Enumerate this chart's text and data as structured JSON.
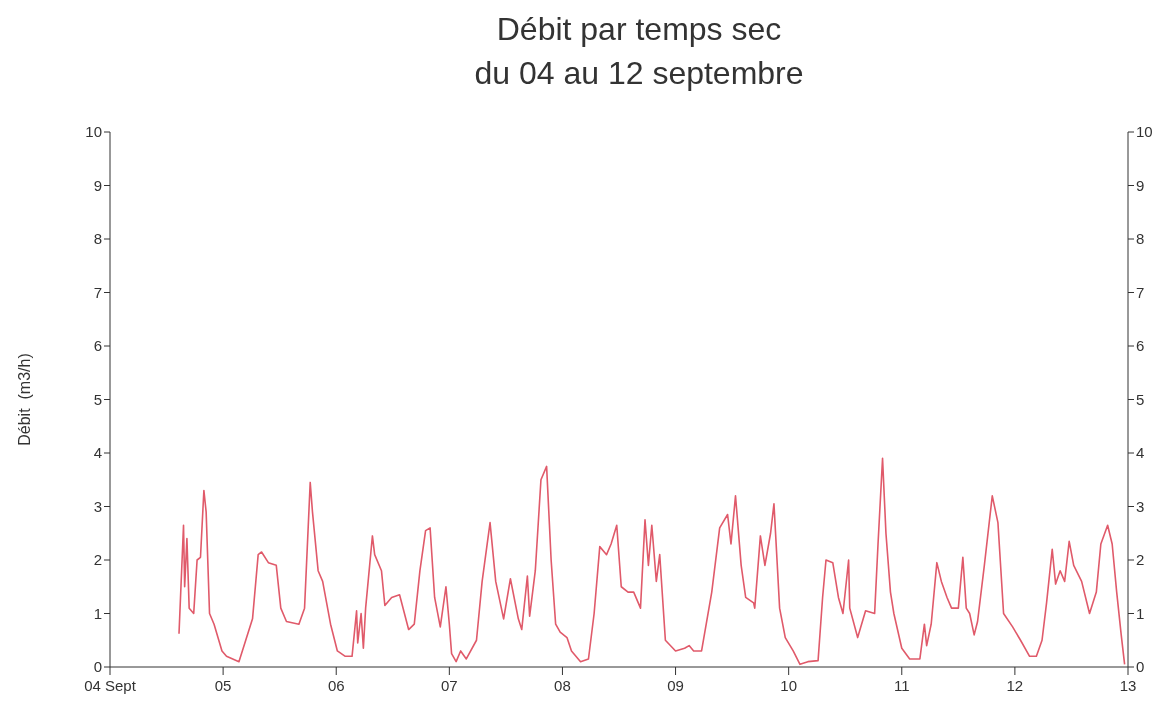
{
  "chart_data": {
    "type": "line",
    "title": "Débit par temps sec\ndu 04 au 12 septembre",
    "ylabel": "Débit  (m3/h)",
    "xlim": [
      4,
      13
    ],
    "xticks": [
      {
        "value": 4,
        "label": "04 Sept"
      },
      {
        "value": 5,
        "label": "05"
      },
      {
        "value": 6,
        "label": "06"
      },
      {
        "value": 7,
        "label": "07"
      },
      {
        "value": 8,
        "label": "08"
      },
      {
        "value": 9,
        "label": "09"
      },
      {
        "value": 10,
        "label": "10"
      },
      {
        "value": 11,
        "label": "11"
      },
      {
        "value": 12,
        "label": "12"
      },
      {
        "value": 13,
        "label": "13"
      }
    ],
    "ylim": [
      0,
      10
    ],
    "yticks": [
      0,
      1,
      2,
      3,
      4,
      5,
      6,
      7,
      8,
      9,
      10
    ],
    "y2lim": [
      0,
      10
    ],
    "y2ticks": [
      0,
      1,
      2,
      3,
      4,
      5,
      6,
      7,
      8,
      9,
      10
    ],
    "grid": false,
    "marker": "none",
    "line_style": "solid",
    "series": [
      {
        "color": "#e05a6a",
        "x": [
          4.61,
          4.65,
          4.66,
          4.68,
          4.7,
          4.74,
          4.77,
          4.8,
          4.83,
          4.85,
          4.88,
          4.92,
          4.99,
          5.03,
          5.14,
          5.2,
          5.26,
          5.31,
          5.34,
          5.4,
          5.47,
          5.51,
          5.56,
          5.67,
          5.72,
          5.77,
          5.79,
          5.84,
          5.88,
          5.95,
          6.01,
          6.08,
          6.14,
          6.18,
          6.19,
          6.22,
          6.24,
          6.26,
          6.32,
          6.34,
          6.4,
          6.43,
          6.49,
          6.56,
          6.64,
          6.69,
          6.74,
          6.79,
          6.83,
          6.87,
          6.92,
          6.97,
          7.0,
          7.02,
          7.06,
          7.1,
          7.15,
          7.24,
          7.29,
          7.36,
          7.41,
          7.48,
          7.54,
          7.61,
          7.64,
          7.69,
          7.71,
          7.76,
          7.81,
          7.86,
          7.9,
          7.94,
          7.98,
          8.04,
          8.08,
          8.16,
          8.23,
          8.28,
          8.33,
          8.39,
          8.43,
          8.48,
          8.52,
          8.58,
          8.63,
          8.69,
          8.73,
          8.76,
          8.79,
          8.83,
          8.86,
          8.91,
          9.0,
          9.08,
          9.12,
          9.16,
          9.23,
          9.32,
          9.39,
          9.46,
          9.49,
          9.53,
          9.58,
          9.62,
          9.69,
          9.7,
          9.75,
          9.79,
          9.84,
          9.87,
          9.92,
          9.97,
          10.04,
          10.1,
          10.17,
          10.26,
          10.3,
          10.33,
          10.39,
          10.44,
          10.48,
          10.53,
          10.54,
          10.61,
          10.68,
          10.76,
          10.79,
          10.83,
          10.86,
          10.9,
          10.93,
          11.0,
          11.07,
          11.16,
          11.2,
          11.22,
          11.26,
          11.31,
          11.35,
          11.4,
          11.44,
          11.5,
          11.54,
          11.57,
          11.6,
          11.64,
          11.67,
          11.73,
          11.8,
          11.85,
          11.9,
          11.98,
          12.05,
          12.13,
          12.19,
          12.24,
          12.28,
          12.33,
          12.36,
          12.4,
          12.44,
          12.48,
          12.52,
          12.59,
          12.66,
          12.72,
          12.76,
          12.82,
          12.86,
          12.9,
          12.94,
          12.97
        ],
        "values": [
          0.62,
          2.65,
          1.5,
          2.4,
          1.1,
          1.0,
          2.0,
          2.05,
          3.3,
          2.9,
          1.0,
          0.8,
          0.3,
          0.2,
          0.1,
          0.5,
          0.9,
          2.1,
          2.15,
          1.95,
          1.9,
          1.1,
          0.85,
          0.8,
          1.1,
          3.45,
          2.9,
          1.8,
          1.6,
          0.8,
          0.3,
          0.2,
          0.2,
          1.05,
          0.45,
          1.0,
          0.35,
          1.1,
          2.45,
          2.1,
          1.8,
          1.15,
          1.3,
          1.35,
          0.7,
          0.8,
          1.8,
          2.55,
          2.6,
          1.3,
          0.75,
          1.5,
          0.8,
          0.25,
          0.1,
          0.3,
          0.15,
          0.5,
          1.6,
          2.7,
          1.6,
          0.9,
          1.65,
          0.9,
          0.7,
          1.7,
          0.95,
          1.8,
          3.5,
          3.75,
          2.0,
          0.8,
          0.65,
          0.55,
          0.3,
          0.1,
          0.15,
          1.0,
          2.25,
          2.1,
          2.3,
          2.65,
          1.5,
          1.4,
          1.4,
          1.1,
          2.75,
          1.9,
          2.65,
          1.6,
          2.1,
          0.5,
          0.3,
          0.35,
          0.4,
          0.3,
          0.3,
          1.4,
          2.6,
          2.85,
          2.3,
          3.2,
          1.9,
          1.3,
          1.2,
          1.1,
          2.45,
          1.9,
          2.5,
          3.05,
          1.1,
          0.55,
          0.3,
          0.05,
          0.1,
          0.12,
          1.3,
          2.0,
          1.95,
          1.3,
          1.0,
          2.0,
          1.1,
          0.55,
          1.05,
          1.0,
          2.3,
          3.9,
          2.5,
          1.4,
          1.0,
          0.35,
          0.15,
          0.15,
          0.8,
          0.4,
          0.8,
          1.95,
          1.6,
          1.3,
          1.1,
          1.1,
          2.05,
          1.1,
          1.0,
          0.6,
          0.85,
          1.9,
          3.2,
          2.7,
          1.0,
          0.75,
          0.5,
          0.2,
          0.2,
          0.5,
          1.2,
          2.2,
          1.55,
          1.8,
          1.6,
          2.35,
          1.9,
          1.6,
          1.0,
          1.4,
          2.3,
          2.65,
          2.3,
          1.4,
          0.6,
          0.05
        ]
      }
    ]
  }
}
